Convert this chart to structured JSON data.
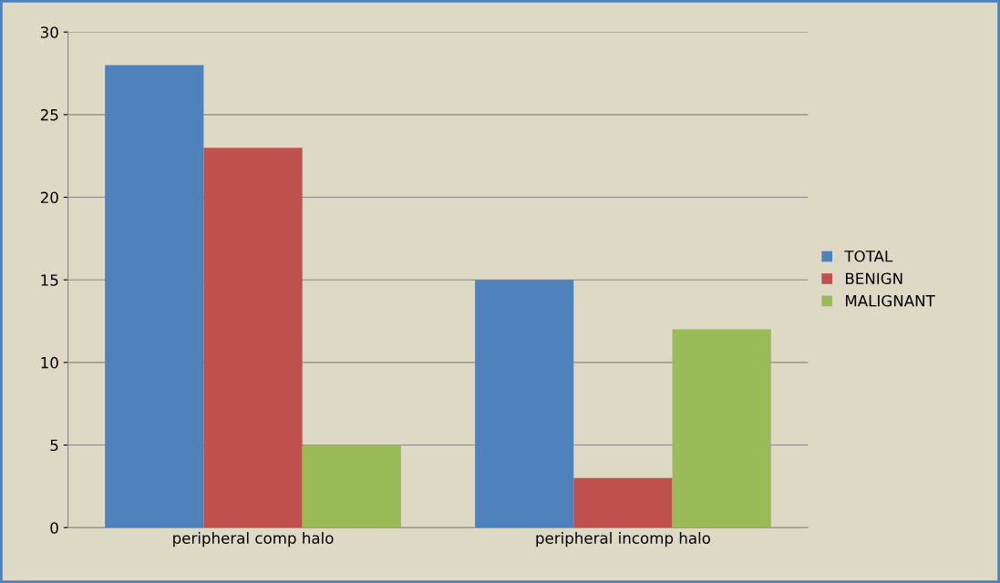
{
  "chart_data": {
    "type": "bar",
    "categories": [
      "peripheral comp halo",
      "peripheral incomp halo"
    ],
    "series": [
      {
        "name": "TOTAL",
        "color": "#4f81bd",
        "values": [
          28,
          15
        ]
      },
      {
        "name": "BENIGN",
        "color": "#c0504d",
        "values": [
          23,
          3
        ]
      },
      {
        "name": "MALIGNANT",
        "color": "#9bbb59",
        "values": [
          5,
          12
        ]
      }
    ],
    "ylim": [
      0,
      30
    ],
    "yticks": [
      0,
      5,
      10,
      15,
      20,
      25,
      30
    ],
    "grid": "y",
    "legend": "right"
  }
}
